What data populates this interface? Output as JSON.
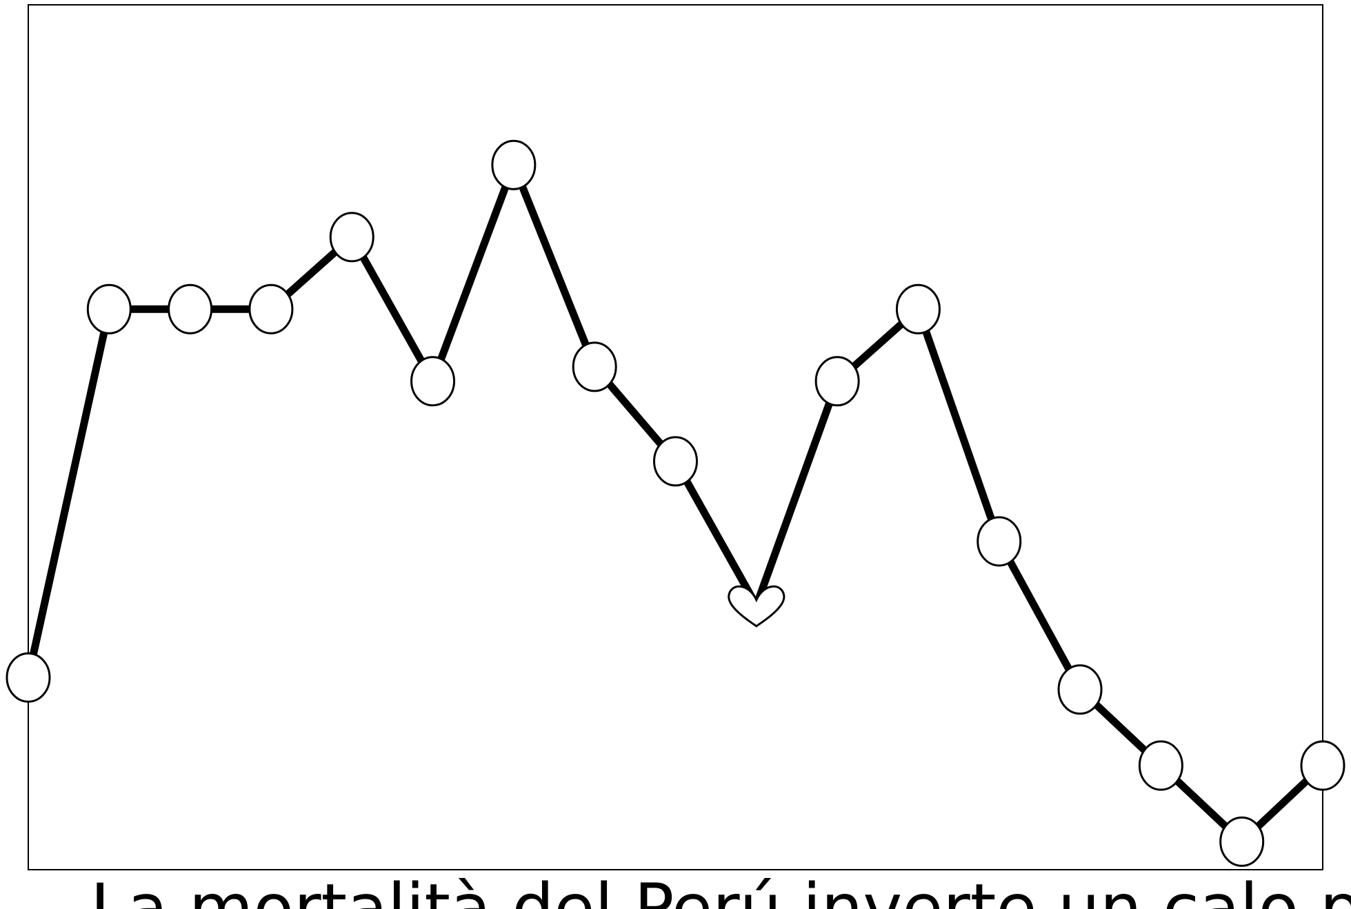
{
  "chart_data": {
    "type": "line",
    "title": "La mortalità del Perú inverte un calo precedente",
    "xlabel": "",
    "ylabel": "",
    "x": [
      0,
      1,
      2,
      3,
      4,
      5,
      6,
      7,
      8,
      9,
      10,
      11,
      12,
      13,
      14,
      15,
      16
    ],
    "series": [
      {
        "values": [
          1.1,
          5.7,
          5.7,
          5.7,
          6.6,
          4.8,
          7.5,
          4.98,
          3.8,
          2.0,
          4.8,
          5.7,
          2.8,
          0.95,
          0.0,
          -0.95,
          0.0
        ],
        "markers": [
          "circle",
          "circle",
          "circle",
          "circle",
          "circle",
          "circle",
          "circle",
          "circle",
          "circle",
          "heart",
          "circle",
          "circle",
          "circle",
          "circle",
          "circle",
          "circle",
          "circle"
        ]
      }
    ],
    "ylim": [
      -1.3,
      9.5
    ],
    "xlim": [
      0,
      16
    ],
    "grid": false,
    "legend": "none",
    "colors": {
      "line": "#000000",
      "marker_fill": "#ffffff",
      "frame": "#000000"
    }
  }
}
